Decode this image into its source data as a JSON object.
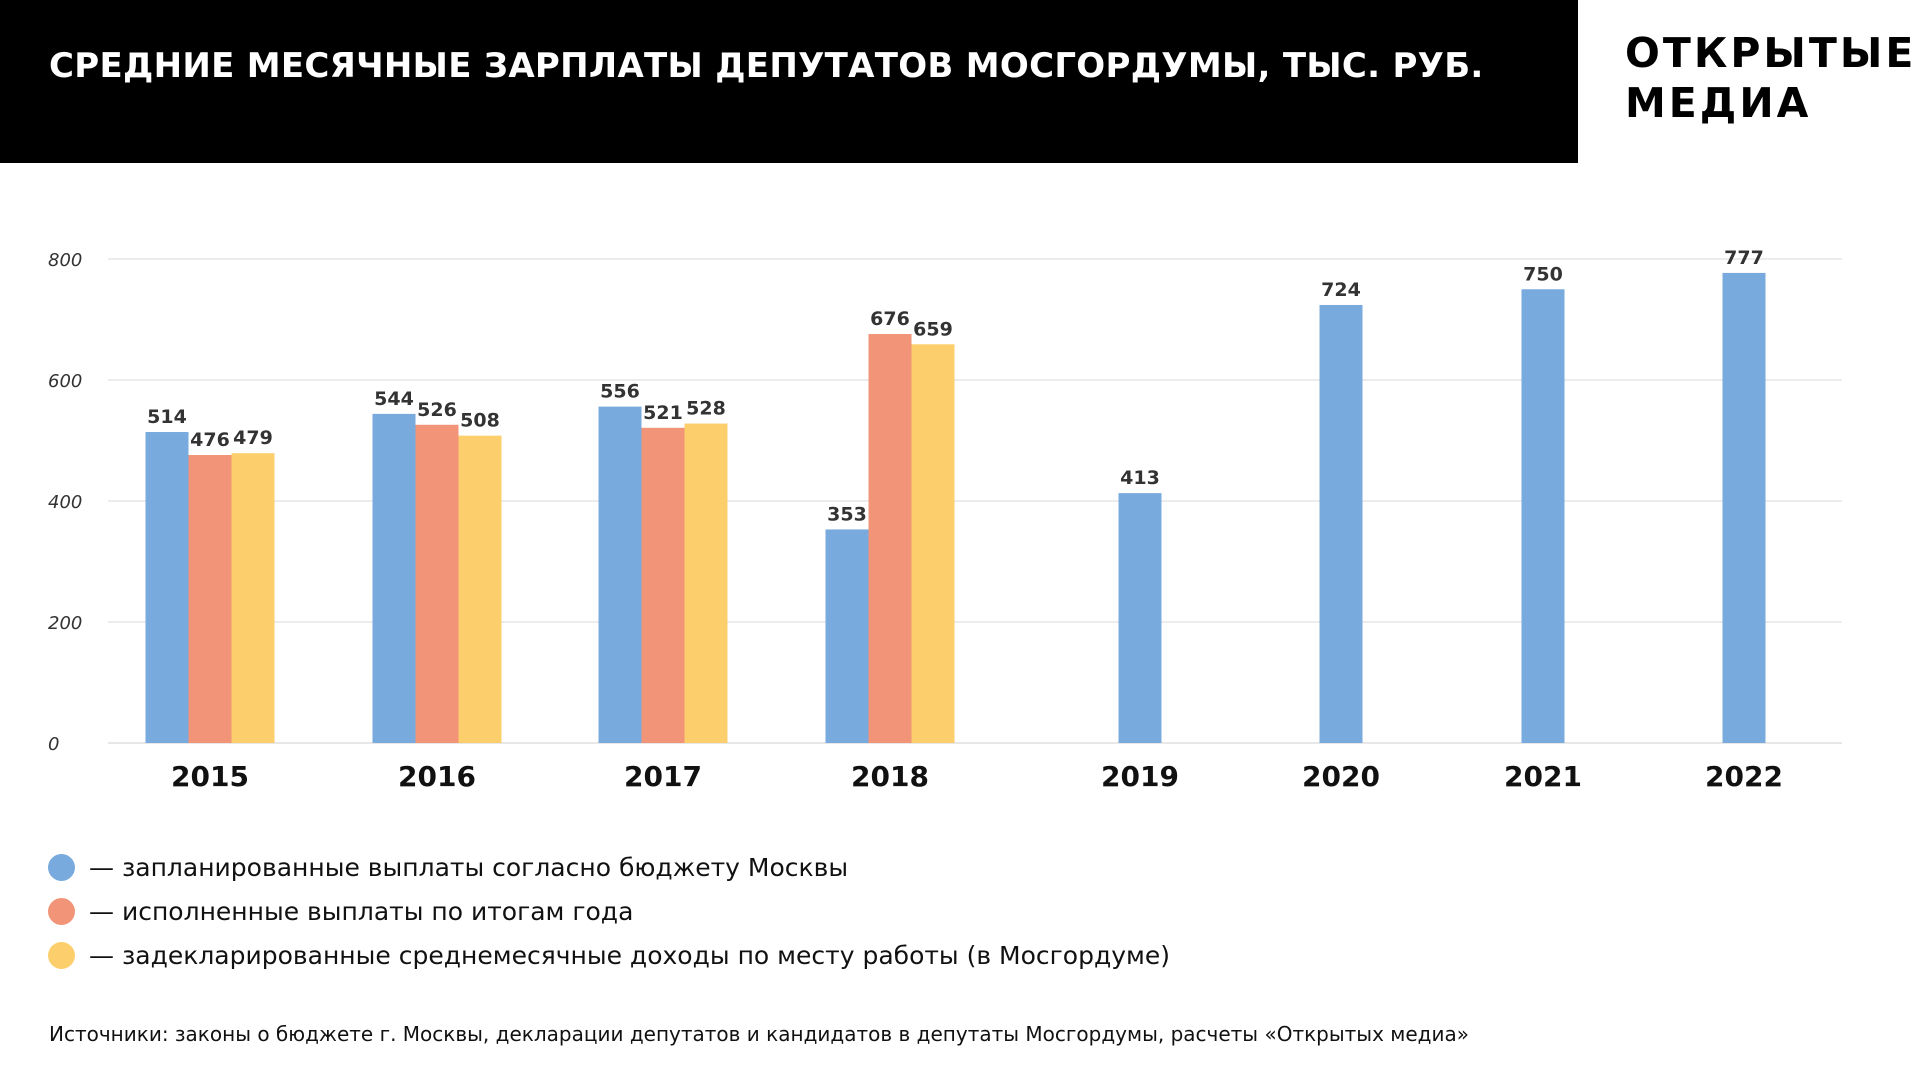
{
  "header": {
    "title": "СРЕДНИЕ МЕСЯЧНЫЕ ЗАРПЛАТЫ ДЕПУТАТОВ МОСГОРДУМЫ, ТЫС. РУБ.",
    "brand_line1": "ОТКРЫТЫЕ",
    "brand_line2": "МЕДИА"
  },
  "legend": [
    {
      "dash": "—",
      "label": "запланированные выплаты согласно бюджету Москвы",
      "color": "#78aadd"
    },
    {
      "dash": "—",
      "label": "исполненные выплаты по итогам года",
      "color": "#f19477"
    },
    {
      "dash": "—",
      "label": "задекларированные среднемесячные доходы по месту работы (в Мосгордуме)",
      "color": "#fcce6c"
    }
  ],
  "source": "Источники: законы о бюджете г. Москвы, декларации депутатов и кандидатов в депутаты Мосгордумы, расчеты «Открытых медиа»",
  "chart_data": {
    "type": "bar",
    "title": "СРЕДНИЕ МЕСЯЧНЫЕ ЗАРПЛАТЫ ДЕПУТАТОВ МОСГОРДУМЫ, ТЫС. РУБ.",
    "xlabel": "",
    "ylabel": "",
    "ylim": [
      0,
      800
    ],
    "yticks": [
      "0",
      "200",
      "400",
      "600",
      "800"
    ],
    "yticks_values": [
      0,
      200,
      400,
      600,
      800
    ],
    "grid": true,
    "legend_position": "bottom-left",
    "categories": [
      "2015",
      "2016",
      "2017",
      "2018",
      "2019",
      "2020",
      "2021",
      "2022"
    ],
    "series": [
      {
        "name": "запланированные выплаты согласно бюджету Москвы",
        "color": "#78aadd",
        "values": [
          514,
          544,
          556,
          353,
          413,
          724,
          750,
          777
        ]
      },
      {
        "name": "исполненные выплаты по итогам года",
        "color": "#f19477",
        "values": [
          476,
          526,
          521,
          676,
          null,
          null,
          null,
          null
        ]
      },
      {
        "name": "задекларированные среднемесячные доходы по месту работы (в Мосгордуме)",
        "color": "#fcce6c",
        "values": [
          479,
          508,
          528,
          659,
          null,
          null,
          null,
          null
        ]
      }
    ]
  }
}
